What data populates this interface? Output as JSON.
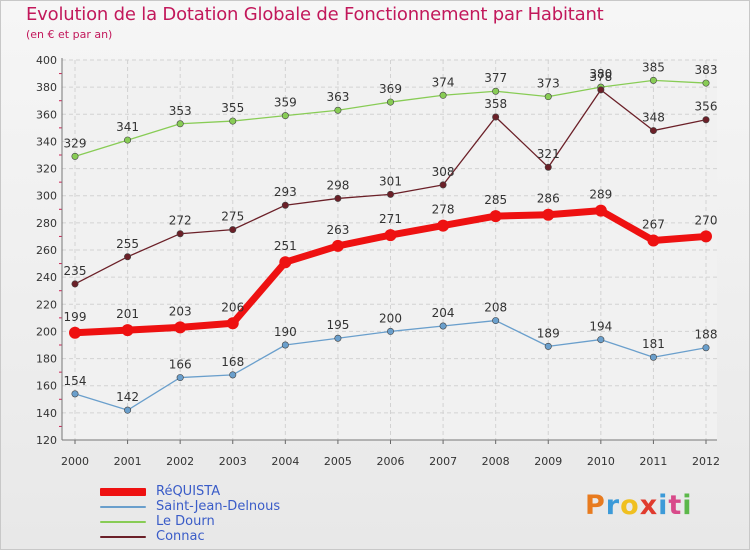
{
  "header": {
    "title": "Evolution de la Dotation Globale de Fonctionnement par Habitant",
    "subtitle": "(en € et par an)"
  },
  "logo": {
    "text": "Proxiti",
    "colors": [
      "#e87b1f",
      "#3c9ad8",
      "#f0c020",
      "#e03b2e",
      "#3c9ad8",
      "#d84a8a",
      "#5cb84a"
    ]
  },
  "chart_data": {
    "type": "line",
    "x": [
      2000,
      2001,
      2002,
      2003,
      2004,
      2005,
      2006,
      2007,
      2008,
      2009,
      2010,
      2011,
      2012
    ],
    "ylim": [
      120,
      400
    ],
    "yticks": [
      120,
      140,
      160,
      180,
      200,
      220,
      240,
      260,
      280,
      300,
      320,
      340,
      360,
      380,
      400
    ],
    "grid": true,
    "legend_position": "bottom-left",
    "series": [
      {
        "name": "RéQUISTA",
        "color": "#ee1111",
        "emphasis": true,
        "values": [
          199,
          201,
          203,
          206,
          251,
          263,
          271,
          278,
          285,
          286,
          289,
          267,
          270
        ]
      },
      {
        "name": "Saint-Jean-Delnous",
        "color": "#6a9fcc",
        "values": [
          154,
          142,
          166,
          168,
          190,
          195,
          200,
          204,
          208,
          189,
          194,
          181,
          188
        ]
      },
      {
        "name": "Le Dourn",
        "color": "#88cc55",
        "values": [
          329,
          341,
          353,
          355,
          359,
          363,
          369,
          374,
          377,
          373,
          380,
          385,
          383
        ]
      },
      {
        "name": "Connac",
        "color": "#6b2028",
        "values": [
          235,
          255,
          272,
          275,
          293,
          298,
          301,
          308,
          358,
          321,
          378,
          348,
          356
        ]
      }
    ]
  }
}
